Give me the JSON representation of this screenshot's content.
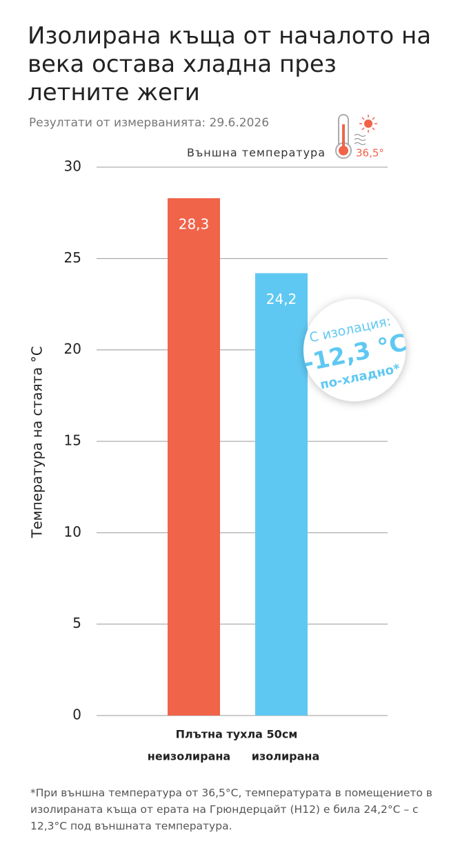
{
  "chart_data": {
    "type": "bar",
    "title": "Изолирана къща от началото на века остава хладна през летните жеги",
    "subtitle": "Резултати от измерванията: 29.6.2026",
    "outside_label": "Външна температура",
    "outside_value_label": "36,5°",
    "y_axis_label": "Температура на стаята °C",
    "group_label": "Плътна тухла 50см",
    "categories": [
      "неизолирана",
      "изолирана"
    ],
    "values": [
      28.3,
      24.2
    ],
    "value_labels": [
      "28,3",
      "24,2"
    ],
    "colors": [
      "#f0644a",
      "#5fc8f2"
    ],
    "ylim": [
      0,
      30
    ],
    "yticks": [
      0,
      5,
      10,
      15,
      20,
      25,
      30
    ],
    "grid": true,
    "badge": [
      "С изолация:",
      "-12,3 °C",
      "по-хладно*"
    ],
    "footnote": "*При външна температура от 36,5°C, температурата в помещението в изолираната къща от ерата на Грюндерцайт (H12) е била 24,2°C – с 12,3°C под външната температура."
  }
}
